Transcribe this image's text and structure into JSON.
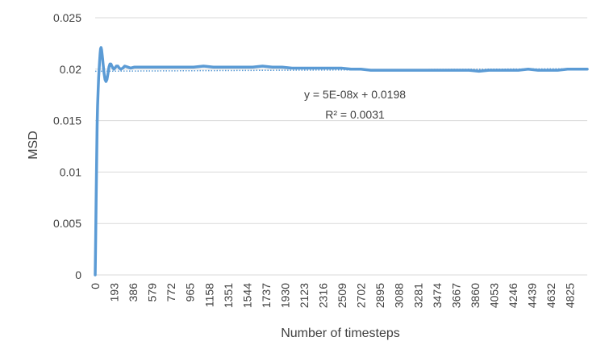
{
  "chart_data": {
    "type": "line",
    "xlabel": "Number of timesteps",
    "ylabel": "MSD",
    "ylim": [
      0,
      0.025
    ],
    "xlim": [
      0,
      5000
    ],
    "grid": "horizontal",
    "legend": "none",
    "y_ticks": [
      "0",
      "0.005",
      "0.01",
      "0.015",
      "0.02",
      "0.025"
    ],
    "x_ticks": [
      "0",
      "193",
      "386",
      "579",
      "772",
      "965",
      "1158",
      "1351",
      "1544",
      "1737",
      "1930",
      "2123",
      "2316",
      "2509",
      "2702",
      "2895",
      "3088",
      "3281",
      "3474",
      "3667",
      "3860",
      "4053",
      "4246",
      "4439",
      "4632",
      "4825"
    ],
    "series": [
      {
        "color": "#5b9bd5",
        "x": [
          0,
          5,
          10,
          15,
          20,
          25,
          30,
          35,
          40,
          45,
          50,
          55,
          60,
          65,
          70,
          75,
          80,
          90,
          100,
          110,
          120,
          130,
          140,
          150,
          160,
          170,
          180,
          190,
          200,
          215,
          230,
          245,
          260,
          280,
          300,
          330,
          360,
          400,
          450,
          500,
          550,
          600,
          700,
          800,
          900,
          1000,
          1100,
          1200,
          1300,
          1400,
          1500,
          1600,
          1700,
          1800,
          1900,
          2000,
          2100,
          2200,
          2300,
          2400,
          2500,
          2600,
          2700,
          2800,
          2900,
          3000,
          3100,
          3200,
          3300,
          3400,
          3500,
          3600,
          3700,
          3800,
          3900,
          4000,
          4100,
          4200,
          4300,
          4400,
          4500,
          4600,
          4700,
          4800,
          4900,
          5000
        ],
        "y": [
          0.0,
          0.0035,
          0.0075,
          0.011,
          0.0145,
          0.0165,
          0.018,
          0.0192,
          0.02,
          0.0208,
          0.0215,
          0.022,
          0.0221,
          0.0219,
          0.0215,
          0.021,
          0.0205,
          0.0196,
          0.019,
          0.0188,
          0.019,
          0.0196,
          0.0202,
          0.0205,
          0.0205,
          0.0203,
          0.0201,
          0.02,
          0.0201,
          0.0203,
          0.0203,
          0.0201,
          0.02,
          0.0201,
          0.0203,
          0.0202,
          0.0201,
          0.0202,
          0.0202,
          0.0202,
          0.0202,
          0.0202,
          0.0202,
          0.0202,
          0.0202,
          0.0202,
          0.0203,
          0.0202,
          0.0202,
          0.0202,
          0.0202,
          0.0202,
          0.0203,
          0.0202,
          0.0202,
          0.0201,
          0.0201,
          0.0201,
          0.0201,
          0.0201,
          0.0201,
          0.02,
          0.02,
          0.0199,
          0.0199,
          0.0199,
          0.0199,
          0.0199,
          0.0199,
          0.0199,
          0.0199,
          0.0199,
          0.0199,
          0.0199,
          0.0198,
          0.0199,
          0.0199,
          0.0199,
          0.0199,
          0.02,
          0.0199,
          0.0199,
          0.0199,
          0.02,
          0.02,
          0.02
        ]
      }
    ],
    "trendline": {
      "type": "linear",
      "slope": 5e-08,
      "intercept": 0.0198,
      "color": "#5b9bd5",
      "style": "dotted",
      "equation": "y = 5E-08x + 0.0198",
      "r_squared": "R² = 0.0031"
    }
  }
}
